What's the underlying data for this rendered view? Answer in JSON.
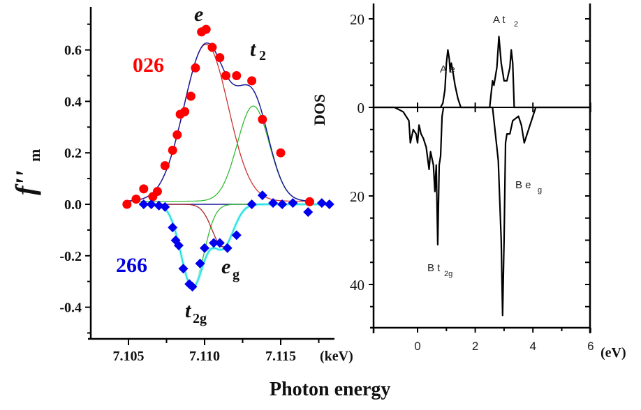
{
  "chart_data": [
    {
      "type": "scatter",
      "panel": "left",
      "xlabel": "Photon energy",
      "x_unit": "(keV)",
      "ylabel": "f''",
      "ylabel_sub": "m",
      "xlim": [
        7.1025,
        7.1185
      ],
      "ylim": [
        -0.52,
        0.76
      ],
      "x_ticks": [
        7.105,
        7.11,
        7.115
      ],
      "x_tick_labels": [
        "7.105",
        "7.110",
        "7.115"
      ],
      "x_minor_ticks": [
        7.1075,
        7.1125,
        7.1175
      ],
      "y_ticks": [
        0.6,
        0.4,
        0.2,
        0.0,
        -0.2,
        -0.4
      ],
      "y_tick_labels": [
        "0.6",
        "0.4",
        "0.2",
        "0.0",
        "-0.2",
        "-0.4"
      ],
      "y_minor_ticks": [
        0.7,
        0.5,
        0.3,
        0.1,
        -0.1,
        -0.3,
        -0.5
      ],
      "grid": false,
      "series": [
        {
          "name": "026",
          "label_color": "#ff0000",
          "marker": "circle",
          "color": "#ff0000",
          "points": [
            [
              7.1049,
              0.0
            ],
            [
              7.1055,
              0.02
            ],
            [
              7.106,
              0.06
            ],
            [
              7.1066,
              0.03
            ],
            [
              7.1069,
              0.05
            ],
            [
              7.1074,
              0.15
            ],
            [
              7.1079,
              0.21
            ],
            [
              7.1082,
              0.27
            ],
            [
              7.1084,
              0.35
            ],
            [
              7.1087,
              0.36
            ],
            [
              7.1091,
              0.42
            ],
            [
              7.1094,
              0.53
            ],
            [
              7.1098,
              0.67
            ],
            [
              7.1101,
              0.68
            ],
            [
              7.1105,
              0.61
            ],
            [
              7.111,
              0.57
            ],
            [
              7.1114,
              0.5
            ],
            [
              7.1121,
              0.5
            ],
            [
              7.1131,
              0.48
            ],
            [
              7.1138,
              0.33
            ],
            [
              7.115,
              0.2
            ],
            [
              7.1169,
              0.01
            ]
          ]
        },
        {
          "name": "266",
          "label_color": "#0000dd",
          "marker": "diamond",
          "color": "#0000ee",
          "points": [
            [
              7.106,
              0.0
            ],
            [
              7.1065,
              0.0
            ],
            [
              7.107,
              -0.005
            ],
            [
              7.1074,
              -0.01
            ],
            [
              7.1079,
              -0.09
            ],
            [
              7.1081,
              -0.14
            ],
            [
              7.1083,
              -0.16
            ],
            [
              7.1086,
              -0.25
            ],
            [
              7.109,
              -0.31
            ],
            [
              7.1092,
              -0.32
            ],
            [
              7.1097,
              -0.23
            ],
            [
              7.11,
              -0.17
            ],
            [
              7.1106,
              -0.15
            ],
            [
              7.111,
              -0.15
            ],
            [
              7.1115,
              -0.17
            ],
            [
              7.1121,
              -0.12
            ],
            [
              7.1131,
              0.0
            ],
            [
              7.1138,
              0.035
            ],
            [
              7.1145,
              0.005
            ],
            [
              7.1151,
              0.0
            ],
            [
              7.1158,
              0.005
            ],
            [
              7.1168,
              -0.03
            ],
            [
              7.1177,
              0.005
            ],
            [
              7.1182,
              0.0
            ]
          ]
        }
      ],
      "fit_curves": [
        {
          "name": "e component (026)",
          "color": "#cc3333",
          "kind": "gaussian",
          "center": 7.1101,
          "amplitude": 0.61,
          "sigma": 0.00145,
          "baseline": 0.012
        },
        {
          "name": "t2 component (026)",
          "color": "#33bb33",
          "kind": "gaussian",
          "center": 7.1132,
          "amplitude": 0.37,
          "sigma": 0.00105,
          "baseline": 0.012
        },
        {
          "name": "total fit (026)",
          "color": "#1a1a99",
          "kind": "sum"
        },
        {
          "name": "t2g component (266)",
          "color": "#33bb33",
          "kind": "gaussian",
          "center": 7.1092,
          "amplitude": -0.32,
          "sigma": 0.00075,
          "baseline": 0.0
        },
        {
          "name": "eg component (266)",
          "color": "#aa2222",
          "kind": "gaussian",
          "center": 7.1112,
          "amplitude": -0.165,
          "sigma": 0.0007,
          "baseline": 0.0
        },
        {
          "name": "baseline (266)",
          "color": "#1a1a99",
          "kind": "flat",
          "value": 0.0
        },
        {
          "name": "total fit (266)",
          "color": "#22dddd",
          "kind": "sum"
        }
      ],
      "annotations": [
        {
          "text": "e",
          "sub": "",
          "at": [
            7.1101,
            0.73
          ]
        },
        {
          "text": "t",
          "sub": "2",
          "at": [
            7.1133,
            0.54
          ]
        },
        {
          "text": "e",
          "sub": "g",
          "at": [
            7.1115,
            -0.25
          ]
        },
        {
          "text": "t",
          "sub": "2g",
          "at": [
            7.1092,
            -0.44
          ]
        },
        {
          "text": "026",
          "sub": "",
          "at": [
            7.1043,
            0.54
          ],
          "color": "#ff0000"
        },
        {
          "text": "266",
          "sub": "",
          "at": [
            7.1043,
            -0.25
          ],
          "color": "#0000dd"
        }
      ]
    },
    {
      "type": "line",
      "panel": "right",
      "ylabel": "DOS",
      "x_unit": "(eV)",
      "xlim": [
        -1.5,
        6
      ],
      "ylim": [
        -50,
        24
      ],
      "x_ticks": [
        0,
        2,
        4,
        6
      ],
      "x_tick_labels": [
        "0",
        "2",
        "4",
        "6"
      ],
      "x_minor_ticks": [
        1,
        3,
        5
      ],
      "y_ticks_up": [
        20,
        0
      ],
      "y_tick_labels_up": [
        "20",
        "0"
      ],
      "y_ticks_down": [
        20,
        40
      ],
      "y_tick_labels_down": [
        "20",
        "40"
      ],
      "grid": false,
      "series": [
        {
          "name": "A (spin up)",
          "color": "#000000",
          "points": [
            [
              -1.5,
              0
            ],
            [
              0.8,
              0
            ],
            [
              0.88,
              1
            ],
            [
              0.95,
              4
            ],
            [
              1.0,
              10
            ],
            [
              1.05,
              13
            ],
            [
              1.1,
              11
            ],
            [
              1.13,
              8
            ],
            [
              1.17,
              10
            ],
            [
              1.2,
              9
            ],
            [
              1.3,
              5
            ],
            [
              1.4,
              2
            ],
            [
              1.5,
              0
            ],
            [
              2.5,
              0
            ],
            [
              2.55,
              3
            ],
            [
              2.6,
              6
            ],
            [
              2.65,
              5
            ],
            [
              2.75,
              9
            ],
            [
              2.82,
              16
            ],
            [
              2.9,
              10
            ],
            [
              3.0,
              6
            ],
            [
              3.1,
              6
            ],
            [
              3.2,
              9
            ],
            [
              3.25,
              13
            ],
            [
              3.3,
              10
            ],
            [
              3.35,
              0
            ],
            [
              6,
              0
            ]
          ]
        },
        {
          "name": "B (spin down)",
          "color": "#000000",
          "points": [
            [
              -1.5,
              0
            ],
            [
              -0.8,
              0
            ],
            [
              -0.5,
              -1
            ],
            [
              -0.3,
              -3
            ],
            [
              -0.25,
              -8
            ],
            [
              -0.15,
              -5
            ],
            [
              -0.05,
              -6
            ],
            [
              0.0,
              -8
            ],
            [
              0.05,
              -4
            ],
            [
              0.12,
              -6
            ],
            [
              0.2,
              -7
            ],
            [
              0.3,
              -9
            ],
            [
              0.4,
              -14
            ],
            [
              0.45,
              -10
            ],
            [
              0.55,
              -13
            ],
            [
              0.6,
              -19
            ],
            [
              0.65,
              -13
            ],
            [
              0.7,
              -31
            ],
            [
              0.75,
              -13
            ],
            [
              0.8,
              -11
            ],
            [
              0.85,
              -2
            ],
            [
              0.9,
              0
            ],
            [
              2.6,
              0
            ],
            [
              2.8,
              -12
            ],
            [
              2.9,
              -30
            ],
            [
              2.95,
              -47
            ],
            [
              3.0,
              -30
            ],
            [
              3.05,
              -8
            ],
            [
              3.1,
              -6
            ],
            [
              3.2,
              -6
            ],
            [
              3.3,
              -3
            ],
            [
              3.5,
              -2
            ],
            [
              3.6,
              -4
            ],
            [
              3.7,
              -8
            ],
            [
              3.8,
              -6
            ],
            [
              4.0,
              -2
            ],
            [
              4.1,
              0
            ],
            [
              6,
              0
            ]
          ]
        }
      ],
      "annotations": [
        {
          "text": "A e",
          "sub": "",
          "at": [
            1.0,
            18
          ]
        },
        {
          "text": "A t",
          "sub": "2",
          "at": [
            2.9,
            20
          ]
        },
        {
          "text": "B e",
          "sub": "g",
          "at": [
            3.8,
            -17
          ]
        },
        {
          "text": "B t",
          "sub": "2g",
          "at": [
            0.3,
            -37
          ]
        }
      ]
    }
  ],
  "figure": {
    "shared_xlabel": "Photon energy"
  }
}
